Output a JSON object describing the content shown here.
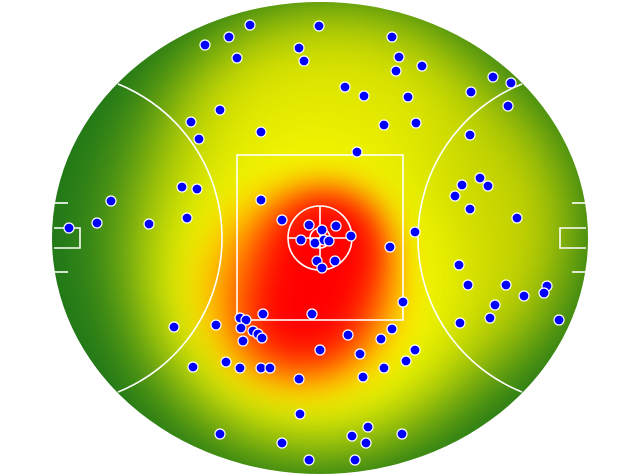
{
  "chart_data": {
    "type": "scatter",
    "color": "#0000ff",
    "xlim": [
      -268,
      268
    ],
    "ylim": [
      -236,
      236
    ],
    "x": [
      -115,
      -91,
      -70,
      -1,
      -83,
      -21,
      -16,
      72,
      79,
      76,
      102,
      173,
      191,
      151,
      188,
      25,
      44,
      88,
      -100,
      -129,
      -59,
      -121,
      64,
      96,
      150,
      37,
      -138,
      -123,
      -209,
      -223,
      -251,
      -171,
      -133,
      -59,
      142,
      160,
      168,
      135,
      150,
      197,
      -38,
      -11,
      2,
      16,
      -19,
      -5,
      4,
      9,
      31,
      95,
      70,
      -3,
      2,
      15,
      139,
      148,
      186,
      204,
      227,
      224,
      175,
      170,
      140,
      239,
      83,
      -146,
      -104,
      -80,
      -74,
      -79,
      -67,
      -62,
      -58,
      -77,
      -57,
      -8,
      72,
      61,
      28,
      0,
      40,
      95,
      86,
      64,
      43,
      -94,
      -80,
      -59,
      -50,
      -127,
      -21,
      -20,
      -100,
      -38,
      48,
      32,
      46,
      82,
      -11,
      35
    ],
    "y": [
      193,
      201,
      213,
      212,
      180,
      190,
      177,
      201,
      181,
      167,
      172,
      161,
      155,
      146,
      132,
      151,
      142,
      141,
      128,
      116,
      106,
      99,
      113,
      115,
      103,
      86,
      51,
      49,
      37,
      15,
      10,
      14,
      20,
      38,
      53,
      60,
      52,
      42,
      29,
      20,
      18,
      13,
      8,
      12,
      -2,
      -5,
      -2,
      -3,
      2,
      6,
      -9,
      -23,
      -30,
      -23,
      -27,
      -47,
      -47,
      -58,
      -48,
      -55,
      -67,
      -80,
      -85,
      -82,
      -64,
      -89,
      -87,
      -80,
      -82,
      -90,
      -93,
      -96,
      -100,
      -103,
      -76,
      -76,
      -91,
      -101,
      -97,
      -112,
      -116,
      -112,
      -123,
      -130,
      -139,
      -124,
      -130,
      -130,
      -130,
      -129,
      -141,
      -176,
      -196,
      -205,
      -189,
      -198,
      -205,
      -196,
      -222,
      -222
    ]
  }
}
